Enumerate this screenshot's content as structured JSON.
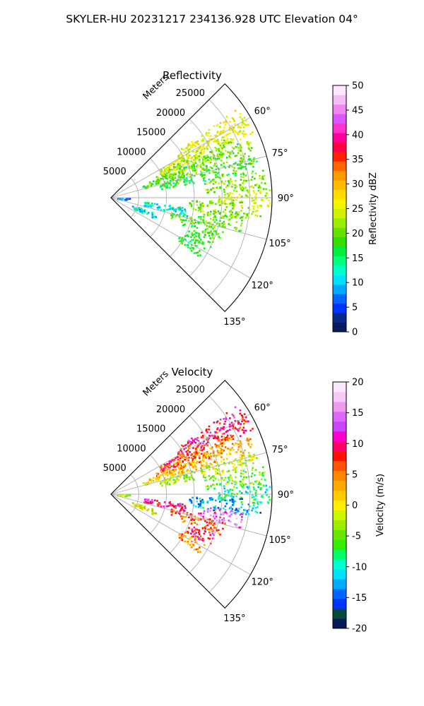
{
  "figure": {
    "title": "SKYLER-HU  20231217  234136.928 UTC Elevation 04°"
  },
  "chart_data": [
    {
      "type": "heatmap",
      "title": "Reflectivity",
      "projection": "polar-sector",
      "range_axis_label": "Meters",
      "range_ticks": [
        5000,
        10000,
        15000,
        20000,
        25000
      ],
      "range_max": 29000,
      "azimuth_ticks": [
        "60°",
        "75°",
        "90°",
        "105°",
        "120°",
        "135°"
      ],
      "azimuth_tick_values": [
        60,
        75,
        90,
        105,
        120,
        135
      ],
      "azimuth_range": [
        45,
        135
      ],
      "grid": true,
      "colorbar": {
        "label": "Reflectivity dBZ",
        "min": 0,
        "max": 50,
        "ticks": [
          0,
          5,
          10,
          15,
          20,
          25,
          30,
          35,
          40,
          45,
          50
        ],
        "colors": [
          "#081a5a",
          "#0a2a8a",
          "#0033ff",
          "#0066ff",
          "#00aaff",
          "#00e0ff",
          "#00ffc8",
          "#00ff80",
          "#00ee40",
          "#33dd00",
          "#66e000",
          "#99ee00",
          "#ccf200",
          "#f5f500",
          "#ffdd00",
          "#ffbb00",
          "#ff9900",
          "#ff6600",
          "#ff2200",
          "#ff0044",
          "#ff0099",
          "#ff33cc",
          "#dd55ff",
          "#ee88ee",
          "#f5bbf5",
          "#fce8fc"
        ]
      },
      "cells": [
        {
          "az": 58,
          "r": [
            14000,
            28000
          ],
          "value": 26
        },
        {
          "az": 62,
          "r": [
            10000,
            28000
          ],
          "value": 25
        },
        {
          "az": 66,
          "r": [
            8000,
            24000
          ],
          "value": 22
        },
        {
          "az": 70,
          "r": [
            6000,
            27000
          ],
          "value": 20
        },
        {
          "az": 76,
          "r": [
            9000,
            27000
          ],
          "value": 18
        },
        {
          "az": 83,
          "r": [
            17000,
            28000
          ],
          "value": 21
        },
        {
          "az": 90,
          "r": [
            19000,
            28500
          ],
          "value": 24
        },
        {
          "az": 95,
          "r": [
            14000,
            27000
          ],
          "value": 22
        },
        {
          "az": 101,
          "r": [
            16000,
            24000
          ],
          "value": 20
        },
        {
          "az": 107,
          "r": [
            11000,
            21000
          ],
          "value": 19
        },
        {
          "az": 114,
          "r": [
            15000,
            20000
          ],
          "value": 18
        },
        {
          "az": 120,
          "r": [
            14000,
            19000
          ],
          "value": 17
        },
        {
          "az": 100,
          "r": [
            6000,
            14000
          ],
          "value": 12
        },
        {
          "az": 112,
          "r": [
            4000,
            9000
          ],
          "value": 11
        },
        {
          "az": 92,
          "r": [
            1000,
            3500
          ],
          "value": 7
        }
      ]
    },
    {
      "type": "heatmap",
      "title": "Velocity",
      "projection": "polar-sector",
      "range_axis_label": "Meters",
      "range_ticks": [
        5000,
        10000,
        15000,
        20000,
        25000
      ],
      "range_max": 29000,
      "azimuth_ticks": [
        "60°",
        "75°",
        "90°",
        "105°",
        "120°",
        "135°"
      ],
      "azimuth_tick_values": [
        60,
        75,
        90,
        105,
        120,
        135
      ],
      "azimuth_range": [
        45,
        135
      ],
      "grid": true,
      "colorbar": {
        "label": "Velocity (m/s)",
        "min": -20,
        "max": 20,
        "ticks": [
          -20,
          -15,
          -10,
          -5,
          0,
          5,
          10,
          15,
          20
        ],
        "colors": [
          "#081a5a",
          "#0a4a3a",
          "#0033ff",
          "#0066ff",
          "#00aaff",
          "#00e0ff",
          "#00ffcc",
          "#00ff66",
          "#33ee00",
          "#66e600",
          "#99ee00",
          "#ccf500",
          "#ffee00",
          "#ffcc00",
          "#ffaa00",
          "#ff8800",
          "#ff5500",
          "#ff1100",
          "#ff0066",
          "#ff00cc",
          "#cc44ff",
          "#dd66ff",
          "#ee99ee",
          "#f5c8f5",
          "#fce8fc"
        ]
      },
      "cells": [
        {
          "az": 58,
          "r": [
            14000,
            28000
          ],
          "value": 10
        },
        {
          "az": 62,
          "r": [
            10000,
            28000
          ],
          "value": 8
        },
        {
          "az": 66,
          "r": [
            8000,
            24000
          ],
          "value": 5
        },
        {
          "az": 70,
          "r": [
            6000,
            27000
          ],
          "value": 2
        },
        {
          "az": 76,
          "r": [
            9000,
            27000
          ],
          "value": -2
        },
        {
          "az": 83,
          "r": [
            17000,
            28000
          ],
          "value": -5
        },
        {
          "az": 90,
          "r": [
            19000,
            28500
          ],
          "value": -9
        },
        {
          "az": 95,
          "r": [
            14000,
            27000
          ],
          "value": -12
        },
        {
          "az": 101,
          "r": [
            16000,
            24000
          ],
          "value": 14
        },
        {
          "az": 107,
          "r": [
            11000,
            21000
          ],
          "value": 6
        },
        {
          "az": 114,
          "r": [
            15000,
            20000
          ],
          "value": 9
        },
        {
          "az": 120,
          "r": [
            14000,
            19000
          ],
          "value": 4
        },
        {
          "az": 100,
          "r": [
            6000,
            14000
          ],
          "value": 10
        },
        {
          "az": 112,
          "r": [
            4000,
            9000
          ],
          "value": -1
        },
        {
          "az": 92,
          "r": [
            1000,
            3500
          ],
          "value": -3
        }
      ]
    }
  ]
}
